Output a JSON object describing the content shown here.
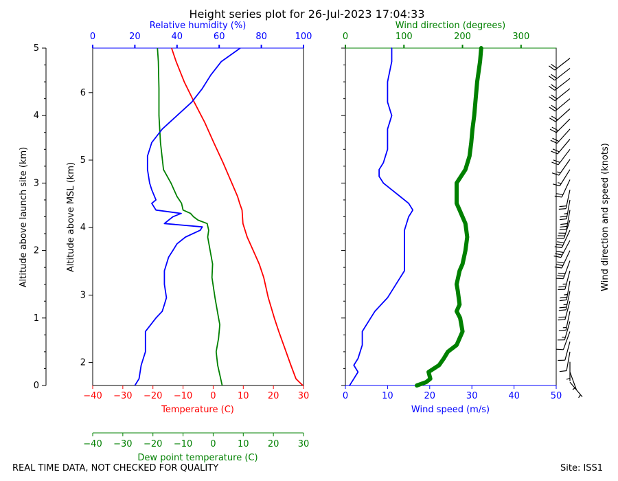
{
  "title": "Height series plot for 26-Jul-2023 17:04:33",
  "footer_left": "REAL TIME DATA, NOT CHECKED FOR QUALITY",
  "footer_right": "Site: ISS1",
  "colors": {
    "temperature": "#ff0000",
    "dewpoint": "#008000",
    "rh": "#0000ff",
    "wind_speed": "#0000ff",
    "wind_dir": "#008000",
    "barbs": "#000000"
  },
  "chart_data": [
    {
      "type": "line",
      "name": "thermo-panel",
      "xlabel": "Temperature (C)",
      "x2label": "Relative humidity (%)",
      "x3label": "Dew point temperature (C)",
      "ylabel": "Altitude above launch site (km)",
      "y2label": "Altitude above MSL (km)",
      "xlim": [
        -40,
        30
      ],
      "x2lim": [
        0,
        100
      ],
      "x3lim": [
        -40,
        30
      ],
      "ylim": [
        0,
        5
      ],
      "y2lim": [
        1.66,
        6.66
      ],
      "xticks": [
        "-40",
        "-30",
        "-20",
        "-10",
        "0",
        "10",
        "20",
        "30"
      ],
      "x2ticks": [
        "0",
        "20",
        "40",
        "60",
        "80",
        "100"
      ],
      "x3ticks": [
        "-40",
        "-30",
        "-20",
        "-10",
        "0",
        "10",
        "20",
        "30"
      ],
      "yticks": [
        "0",
        "1",
        "2",
        "3",
        "4",
        "5"
      ],
      "y2ticks": [
        "2",
        "3",
        "4",
        "5",
        "6"
      ],
      "series": [
        {
          "name": "Temperature",
          "axis": "x",
          "alt": [
            0.0,
            0.05,
            0.1,
            0.3,
            0.5,
            0.8,
            1.0,
            1.3,
            1.6,
            1.8,
            2.0,
            2.2,
            2.4,
            2.6,
            2.7,
            2.8,
            3.0,
            3.3,
            3.6,
            3.9,
            4.2,
            4.5,
            4.8,
            5.0
          ],
          "values": [
            29.8,
            28.6,
            27.5,
            25.8,
            24.2,
            21.8,
            20.3,
            18.3,
            16.8,
            15.3,
            13.3,
            11.3,
            9.9,
            9.6,
            8.8,
            8.1,
            6.2,
            3.3,
            0.2,
            -2.8,
            -6.3,
            -9.6,
            -12.3,
            -13.8
          ]
        },
        {
          "name": "Dew point",
          "axis": "x3",
          "alt": [
            0.0,
            0.1,
            0.3,
            0.5,
            0.7,
            0.9,
            1.0,
            1.3,
            1.6,
            1.8,
            2.0,
            2.2,
            2.3,
            2.4,
            2.45,
            2.5,
            2.55,
            2.6,
            2.7,
            2.8,
            3.0,
            3.2,
            3.4,
            3.6,
            4.0,
            4.4,
            4.8,
            5.0
          ],
          "values": [
            3.0,
            2.5,
            1.5,
            1.0,
            1.8,
            2.2,
            1.8,
            0.6,
            -0.4,
            -0.2,
            -1.0,
            -1.8,
            -1.5,
            -2.0,
            -5.0,
            -6.5,
            -7.5,
            -10.0,
            -10.5,
            -12.0,
            -14.0,
            -16.5,
            -17.0,
            -17.5,
            -18.0,
            -18.0,
            -18.2,
            -18.5
          ]
        },
        {
          "name": "Relative humidity",
          "axis": "x2",
          "alt": [
            0.0,
            0.1,
            0.3,
            0.5,
            0.7,
            0.8,
            1.0,
            1.1,
            1.2,
            1.3,
            1.5,
            1.7,
            1.9,
            2.0,
            2.1,
            2.2,
            2.3,
            2.35,
            2.4,
            2.5,
            2.55,
            2.6,
            2.7,
            2.75,
            2.9,
            3.0,
            3.2,
            3.4,
            3.6,
            3.8,
            4.0,
            4.2,
            4.4,
            4.6,
            4.8,
            5.0
          ],
          "values": [
            20,
            22,
            23,
            25,
            25,
            25,
            30,
            33,
            34,
            35,
            34,
            34,
            36,
            38,
            40,
            44,
            51,
            52,
            34,
            38,
            42,
            30,
            28,
            30,
            28,
            27,
            26,
            26,
            28,
            33,
            40,
            47,
            52,
            56,
            61,
            70
          ]
        }
      ]
    },
    {
      "type": "line",
      "name": "wind-panel",
      "xlabel": "Wind speed (m/s)",
      "x2label": "Wind direction (degrees)",
      "ylabel": "Wind direction and speed (knots)",
      "xlim": [
        0,
        50
      ],
      "x2lim": [
        0,
        360
      ],
      "ylim": [
        0,
        5
      ],
      "xticks": [
        "0",
        "10",
        "20",
        "30",
        "40",
        "50"
      ],
      "x2ticks": [
        "0",
        "100",
        "200",
        "300"
      ],
      "series": [
        {
          "name": "Wind speed",
          "axis": "x",
          "alt": [
            0.0,
            0.1,
            0.2,
            0.3,
            0.4,
            0.6,
            0.8,
            1.0,
            1.1,
            1.3,
            1.5,
            1.7,
            1.9,
            2.1,
            2.3,
            2.5,
            2.6,
            2.7,
            2.8,
            2.9,
            3.0,
            3.1,
            3.2,
            3.3,
            3.5,
            3.8,
            4.0,
            4.2,
            4.5,
            4.8,
            5.0
          ],
          "values": [
            1,
            2,
            3,
            2,
            3,
            4,
            4,
            6,
            7,
            10,
            12,
            14,
            14,
            14,
            14,
            15,
            16,
            15,
            13,
            11,
            9,
            8,
            8,
            9,
            10,
            10,
            11,
            10,
            10,
            11,
            11
          ]
        },
        {
          "name": "Wind direction",
          "axis": "x2",
          "alt": [
            0.0,
            0.05,
            0.1,
            0.2,
            0.3,
            0.4,
            0.5,
            0.6,
            0.7,
            0.8,
            1.0,
            1.1,
            1.2,
            1.4,
            1.5,
            1.7,
            1.8,
            2.0,
            2.2,
            2.4,
            2.6,
            2.7,
            2.8,
            3.0,
            3.2,
            3.4,
            3.6,
            3.8,
            4.0,
            4.2,
            4.5,
            4.8,
            5.0
          ],
          "values": [
            122,
            138,
            145,
            142,
            160,
            168,
            175,
            190,
            195,
            200,
            196,
            190,
            195,
            192,
            190,
            195,
            200,
            205,
            208,
            205,
            195,
            190,
            190,
            190,
            205,
            212,
            215,
            217,
            220,
            222,
            225,
            230,
            232
          ]
        }
      ],
      "barbs": {
        "alt": [
          0.05,
          0.2,
          0.35,
          0.5,
          0.65,
          0.8,
          0.95,
          1.1,
          1.25,
          1.4,
          1.55,
          1.7,
          1.85,
          2.0,
          2.15,
          2.3,
          2.45,
          2.6,
          2.75,
          2.9,
          3.05,
          3.2,
          3.35,
          3.5,
          3.65,
          3.8,
          3.95,
          4.1,
          4.25,
          4.4,
          4.55,
          4.7,
          4.85
        ],
        "speed_kt": [
          3,
          5,
          7,
          8,
          9,
          10,
          13,
          15,
          20,
          25,
          25,
          25,
          28,
          28,
          28,
          30,
          30,
          28,
          25,
          20,
          18,
          16,
          17,
          19,
          20,
          20,
          21,
          20,
          20,
          21,
          21,
          22,
          22
        ],
        "direction_deg": [
          140,
          160,
          180,
          190,
          195,
          200,
          196,
          192,
          195,
          192,
          190,
          195,
          200,
          205,
          208,
          205,
          198,
          190,
          190,
          192,
          205,
          212,
          215,
          217,
          220,
          222,
          225,
          228,
          230,
          231,
          232,
          232,
          232
        ]
      }
    }
  ]
}
